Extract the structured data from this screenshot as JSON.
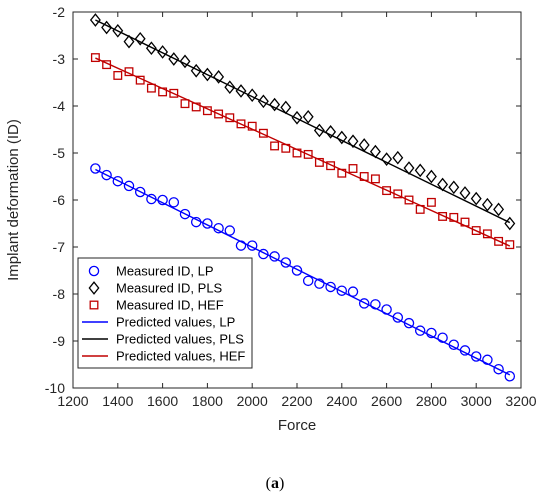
{
  "chart_data": {
    "type": "scatter",
    "xlabel": "Force",
    "ylabel": "Implant deformation (ID)",
    "xlim": [
      1200,
      3200
    ],
    "ylim": [
      -10,
      -2
    ],
    "xticks": [
      1200,
      1400,
      1600,
      1800,
      2000,
      2200,
      2400,
      2600,
      2800,
      3000,
      3200
    ],
    "yticks": [
      -10,
      -9,
      -8,
      -7,
      -6,
      -5,
      -4,
      -3,
      -2
    ],
    "grid": false,
    "legend_position": "bottom-left",
    "caption": "(a)",
    "caption_letter": "a",
    "series": [
      {
        "name": "Measured ID, LP",
        "kind": "marker",
        "marker": "circle",
        "color": "#0000ff",
        "x": [
          1300,
          1350,
          1400,
          1450,
          1500,
          1550,
          1600,
          1650,
          1700,
          1750,
          1800,
          1850,
          1900,
          1950,
          2000,
          2050,
          2100,
          2150,
          2200,
          2250,
          2300,
          2350,
          2400,
          2450,
          2500,
          2550,
          2600,
          2650,
          2700,
          2750,
          2800,
          2850,
          2900,
          2950,
          3000,
          3050,
          3100,
          3150
        ],
        "y": [
          -5.33,
          -5.47,
          -5.6,
          -5.7,
          -5.83,
          -5.98,
          -6.0,
          -6.05,
          -6.3,
          -6.47,
          -6.5,
          -6.6,
          -6.65,
          -6.97,
          -6.97,
          -7.15,
          -7.2,
          -7.33,
          -7.5,
          -7.72,
          -7.78,
          -7.85,
          -7.93,
          -7.95,
          -8.2,
          -8.22,
          -8.33,
          -8.5,
          -8.62,
          -8.78,
          -8.83,
          -8.93,
          -9.08,
          -9.2,
          -9.33,
          -9.4,
          -9.6,
          -9.75
        ]
      },
      {
        "name": "Measured ID, PLS",
        "kind": "marker",
        "marker": "diamond",
        "color": "#000000",
        "x": [
          1300,
          1350,
          1400,
          1450,
          1500,
          1550,
          1600,
          1650,
          1700,
          1750,
          1800,
          1850,
          1900,
          1950,
          2000,
          2050,
          2100,
          2150,
          2200,
          2250,
          2300,
          2350,
          2400,
          2450,
          2500,
          2550,
          2600,
          2650,
          2700,
          2750,
          2800,
          2850,
          2900,
          2950,
          3000,
          3050,
          3100,
          3150
        ],
        "y": [
          -2.17,
          -2.33,
          -2.4,
          -2.63,
          -2.57,
          -2.77,
          -2.85,
          -3.0,
          -3.05,
          -3.25,
          -3.33,
          -3.38,
          -3.6,
          -3.68,
          -3.77,
          -3.9,
          -3.97,
          -4.03,
          -4.25,
          -4.23,
          -4.52,
          -4.55,
          -4.67,
          -4.75,
          -4.83,
          -4.97,
          -5.13,
          -5.1,
          -5.32,
          -5.37,
          -5.5,
          -5.67,
          -5.73,
          -5.85,
          -5.97,
          -6.1,
          -6.2,
          -6.5
        ]
      },
      {
        "name": "Measured ID, HEF",
        "kind": "marker",
        "marker": "square",
        "color": "#c00000",
        "x": [
          1300,
          1350,
          1400,
          1450,
          1500,
          1550,
          1600,
          1650,
          1700,
          1750,
          1800,
          1850,
          1900,
          1950,
          2000,
          2050,
          2100,
          2150,
          2200,
          2250,
          2300,
          2350,
          2400,
          2450,
          2500,
          2550,
          2600,
          2650,
          2700,
          2750,
          2800,
          2850,
          2900,
          2950,
          3000,
          3050,
          3100,
          3150
        ],
        "y": [
          -2.97,
          -3.12,
          -3.35,
          -3.27,
          -3.45,
          -3.62,
          -3.7,
          -3.73,
          -3.95,
          -4.02,
          -4.1,
          -4.17,
          -4.25,
          -4.38,
          -4.43,
          -4.58,
          -4.85,
          -4.9,
          -5.0,
          -5.03,
          -5.2,
          -5.27,
          -5.43,
          -5.33,
          -5.5,
          -5.55,
          -5.8,
          -5.87,
          -6.0,
          -6.2,
          -6.05,
          -6.35,
          -6.37,
          -6.47,
          -6.65,
          -6.72,
          -6.88,
          -6.95
        ]
      },
      {
        "name": "Predicted values, LP",
        "kind": "line",
        "color": "#0000ff",
        "x": [
          1300,
          3150
        ],
        "y": [
          -5.35,
          -9.72
        ]
      },
      {
        "name": "Predicted values, PLS",
        "kind": "line",
        "color": "#000000",
        "x": [
          1300,
          3150
        ],
        "y": [
          -2.17,
          -6.48
        ]
      },
      {
        "name": "Predicted values, HEF",
        "kind": "line",
        "color": "#c00000",
        "x": [
          1300,
          3150
        ],
        "y": [
          -2.98,
          -6.98
        ]
      }
    ]
  }
}
